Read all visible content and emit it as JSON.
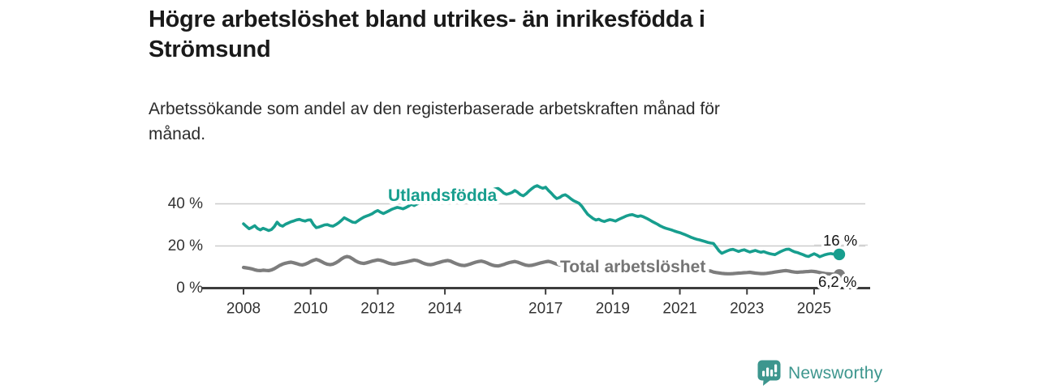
{
  "header": {
    "title_lines": [
      "Högre arbetslöshet bland utrikes- än inrikesfödda i",
      "Strömsund"
    ],
    "subtitle_lines": [
      "Arbetssökande som andel av den registerbaserade arbetskraften månad för",
      "månad."
    ]
  },
  "footer": {
    "brand": "Newsworthy"
  },
  "colors": {
    "accent": "#179e8e",
    "gray_series": "#7d7d7d",
    "gray_label": "#757575",
    "grid": "#cccccc",
    "leader": "#d6d6d6",
    "axis": "#3d3d3d",
    "tick_text": "#333333",
    "annotation_text": "#141414",
    "brand": "#3d968e"
  },
  "chart_data": {
    "type": "line",
    "x_start": 2008.0,
    "points_per_year": 12,
    "x_ticks": [
      2008,
      2010,
      2012,
      2014,
      2017,
      2019,
      2021,
      2023,
      2025
    ],
    "y_ticks": [
      {
        "value": 0,
        "label": "0 %"
      },
      {
        "value": 20,
        "label": "20 %"
      },
      {
        "value": 40,
        "label": "40 %"
      }
    ],
    "ylim": [
      0,
      52
    ],
    "xlim": [
      2007.15,
      2026.5
    ],
    "grid": "horizontal",
    "legend": "inline-labels",
    "series": [
      {
        "name": "Utlandsfödda",
        "color": "#179e8e",
        "end_label": "16 %",
        "values": [
          30.5,
          29.3,
          28.2,
          28.8,
          29.6,
          28.3,
          27.6,
          28.4,
          27.9,
          27.3,
          27.8,
          29.2,
          31.3,
          29.9,
          29.4,
          30.3,
          30.9,
          31.5,
          31.9,
          32.4,
          32.6,
          32.1,
          31.8,
          32.3,
          32.4,
          30.2,
          28.7,
          29.0,
          29.5,
          30.0,
          30.1,
          29.6,
          29.4,
          30.1,
          31.0,
          32.1,
          33.4,
          32.7,
          32.0,
          31.3,
          31.1,
          32.0,
          32.9,
          33.7,
          34.2,
          34.7,
          35.3,
          36.2,
          36.8,
          36.0,
          35.4,
          36.0,
          36.7,
          37.4,
          37.9,
          38.3,
          38.0,
          37.6,
          38.2,
          38.9,
          39.8,
          39.2,
          39.9,
          40.4,
          40.8,
          41.2,
          41.5,
          41.7,
          41.9,
          42.1,
          42.3,
          42.5,
          42.7,
          42.9,
          43.1,
          43.3,
          43.5,
          43.6,
          43.8,
          44.0,
          44.1,
          44.3,
          44.5,
          44.7,
          44.9,
          45.2,
          45.5,
          45.9,
          46.3,
          46.7,
          47.1,
          47.3,
          46.4,
          45.1,
          44.5,
          44.9,
          45.4,
          46.3,
          45.5,
          44.4,
          43.8,
          44.7,
          46.0,
          47.1,
          48.1,
          48.6,
          47.9,
          47.4,
          47.9,
          46.4,
          45.1,
          43.6,
          42.5,
          43.0,
          43.9,
          44.3,
          43.5,
          42.4,
          41.5,
          40.9,
          40.2,
          38.8,
          36.9,
          35.1,
          34.0,
          33.0,
          32.3,
          32.7,
          32.0,
          31.6,
          32.1,
          32.5,
          32.2,
          31.8,
          32.5,
          33.1,
          33.7,
          34.3,
          34.7,
          34.9,
          34.4,
          34.0,
          34.3,
          33.8,
          33.2,
          32.5,
          31.7,
          31.0,
          30.3,
          29.5,
          28.9,
          28.4,
          28.0,
          27.6,
          27.1,
          26.7,
          26.3,
          25.8,
          25.3,
          24.7,
          24.1,
          23.6,
          23.2,
          22.9,
          22.5,
          22.1,
          21.7,
          21.4,
          21.2,
          19.5,
          17.7,
          16.5,
          17.1,
          17.7,
          18.2,
          18.4,
          17.9,
          17.4,
          17.9,
          18.2,
          17.6,
          17.1,
          17.5,
          17.9,
          17.4,
          17.0,
          17.3,
          16.8,
          16.4,
          16.1,
          15.9,
          16.6,
          17.3,
          17.9,
          18.4,
          18.5,
          17.8,
          17.2,
          16.9,
          16.4,
          15.9,
          15.3,
          15.0,
          15.7,
          16.3,
          15.7,
          14.9,
          15.4,
          15.9,
          16.2,
          16.4,
          16.1,
          15.9,
          16.0
        ]
      },
      {
        "name": "Total arbetslöshet",
        "color": "#7d7d7d",
        "end_label": "6,2 %",
        "values": [
          9.8,
          9.6,
          9.4,
          9.1,
          8.7,
          8.4,
          8.3,
          8.5,
          8.4,
          8.3,
          8.6,
          9.2,
          10.0,
          10.8,
          11.4,
          11.8,
          12.1,
          12.3,
          12.0,
          11.6,
          11.2,
          11.0,
          11.3,
          11.9,
          12.6,
          13.2,
          13.6,
          13.2,
          12.5,
          11.8,
          11.3,
          11.1,
          11.4,
          12.0,
          12.8,
          13.8,
          14.6,
          15.0,
          14.7,
          13.9,
          13.0,
          12.3,
          11.9,
          11.7,
          12.0,
          12.4,
          12.8,
          13.1,
          13.4,
          13.2,
          12.8,
          12.3,
          11.8,
          11.5,
          11.4,
          11.6,
          11.9,
          12.1,
          12.4,
          12.7,
          13.0,
          13.3,
          13.1,
          12.6,
          12.0,
          11.5,
          11.2,
          11.1,
          11.4,
          11.8,
          12.2,
          12.6,
          12.9,
          13.1,
          12.8,
          12.2,
          11.6,
          11.1,
          10.8,
          10.7,
          11.0,
          11.4,
          11.9,
          12.3,
          12.6,
          12.8,
          12.5,
          12.0,
          11.4,
          10.9,
          10.6,
          10.5,
          10.8,
          11.2,
          11.7,
          12.1,
          12.4,
          12.6,
          12.3,
          11.8,
          11.3,
          10.9,
          10.7,
          10.8,
          11.1,
          11.5,
          11.9,
          12.2,
          12.5,
          12.7,
          12.4,
          11.9,
          11.4,
          11.0,
          10.8,
          10.9,
          11.1,
          11.4,
          11.7,
          11.9,
          12.1,
          12.0,
          11.7,
          11.2,
          10.7,
          10.3,
          10.1,
          10.2,
          10.4,
          10.7,
          11.0,
          11.3,
          11.5,
          11.6,
          11.4,
          11.0,
          10.6,
          10.3,
          10.2,
          10.3,
          10.5,
          10.8,
          11.0,
          11.2,
          11.4,
          11.5,
          11.6,
          11.8,
          11.9,
          11.7,
          11.4,
          11.1,
          10.9,
          10.7,
          10.5,
          10.3,
          10.2,
          10.1,
          9.9,
          9.6,
          9.3,
          9.0,
          8.8,
          8.6,
          8.5,
          8.3,
          8.2,
          8.1,
          7.6,
          7.4,
          7.2,
          7.0,
          6.9,
          6.8,
          6.8,
          6.9,
          7.0,
          7.1,
          7.2,
          7.3,
          7.4,
          7.5,
          7.3,
          7.1,
          7.0,
          6.9,
          6.9,
          7.0,
          7.2,
          7.4,
          7.6,
          7.8,
          8.0,
          8.2,
          8.3,
          8.1,
          7.8,
          7.6,
          7.5,
          7.6,
          7.7,
          7.8,
          7.9,
          8.0,
          7.9,
          7.7,
          7.4,
          7.1,
          6.9,
          6.8,
          6.7,
          6.6,
          6.4,
          6.2
        ]
      }
    ]
  }
}
